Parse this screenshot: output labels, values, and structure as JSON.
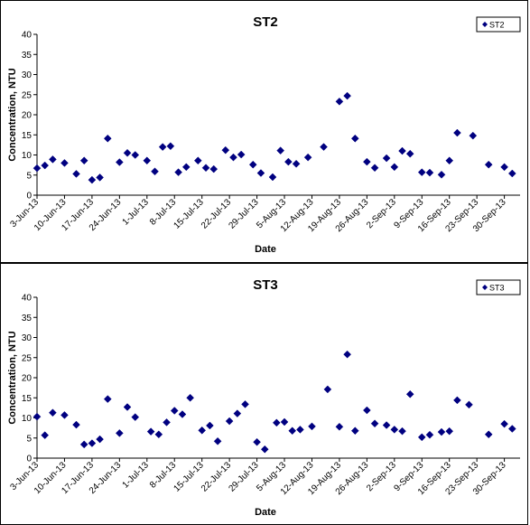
{
  "chart_data": [
    {
      "type": "scatter",
      "title": "ST2",
      "xlabel": "Date",
      "ylabel": "Concentration, NTU",
      "ylim": [
        0,
        40
      ],
      "yticks": [
        "0",
        "5",
        "10",
        "15",
        "20",
        "25",
        "30",
        "35",
        "40"
      ],
      "xlim": [
        "2013-06-03",
        "2013-10-04"
      ],
      "xtick_labels": [
        "3-Jun-13",
        "10-Jun-13",
        "17-Jun-13",
        "24-Jun-13",
        "1-Jul-13",
        "8-Jul-13",
        "15-Jul-13",
        "22-Jul-13",
        "29-Jul-13",
        "5-Aug-13",
        "12-Aug-13",
        "19-Aug-13",
        "26-Aug-13",
        "2-Sep-13",
        "9-Sep-13",
        "16-Sep-13",
        "23-Sep-13",
        "30-Sep-13"
      ],
      "grid": false,
      "legend_position": "top-right",
      "marker_color": "#000080",
      "series": [
        {
          "name": "ST2",
          "points": [
            [
              "2013-06-03",
              6.7
            ],
            [
              "2013-06-05",
              7.4
            ],
            [
              "2013-06-07",
              8.9
            ],
            [
              "2013-06-10",
              8.0
            ],
            [
              "2013-06-13",
              5.3
            ],
            [
              "2013-06-15",
              8.6
            ],
            [
              "2013-06-17",
              3.8
            ],
            [
              "2013-06-19",
              4.4
            ],
            [
              "2013-06-21",
              14.1
            ],
            [
              "2013-06-24",
              8.2
            ],
            [
              "2013-06-26",
              10.5
            ],
            [
              "2013-06-28",
              10.0
            ],
            [
              "2013-07-01",
              8.6
            ],
            [
              "2013-07-03",
              5.9
            ],
            [
              "2013-07-05",
              12.0
            ],
            [
              "2013-07-07",
              12.2
            ],
            [
              "2013-07-09",
              5.7
            ],
            [
              "2013-07-11",
              7.0
            ],
            [
              "2013-07-14",
              8.6
            ],
            [
              "2013-07-16",
              6.8
            ],
            [
              "2013-07-18",
              6.5
            ],
            [
              "2013-07-21",
              11.2
            ],
            [
              "2013-07-23",
              9.4
            ],
            [
              "2013-07-25",
              10.1
            ],
            [
              "2013-07-28",
              7.6
            ],
            [
              "2013-07-30",
              5.5
            ],
            [
              "2013-08-02",
              4.5
            ],
            [
              "2013-08-04",
              11.1
            ],
            [
              "2013-08-06",
              8.3
            ],
            [
              "2013-08-08",
              7.8
            ],
            [
              "2013-08-11",
              9.4
            ],
            [
              "2013-08-15",
              12.0
            ],
            [
              "2013-08-19",
              23.3
            ],
            [
              "2013-08-21",
              24.7
            ],
            [
              "2013-08-23",
              14.1
            ],
            [
              "2013-08-26",
              8.3
            ],
            [
              "2013-08-28",
              6.8
            ],
            [
              "2013-08-31",
              9.2
            ],
            [
              "2013-09-02",
              7.0
            ],
            [
              "2013-09-04",
              11.0
            ],
            [
              "2013-09-06",
              10.3
            ],
            [
              "2013-09-09",
              5.7
            ],
            [
              "2013-09-11",
              5.6
            ],
            [
              "2013-09-14",
              5.1
            ],
            [
              "2013-09-16",
              8.6
            ],
            [
              "2013-09-18",
              15.5
            ],
            [
              "2013-09-22",
              14.8
            ],
            [
              "2013-09-26",
              7.6
            ],
            [
              "2013-09-30",
              7.0
            ],
            [
              "2013-10-02",
              5.4
            ]
          ]
        }
      ]
    },
    {
      "type": "scatter",
      "title": "ST3",
      "xlabel": "Date",
      "ylabel": "Concentration, NTU",
      "ylim": [
        0,
        40
      ],
      "yticks": [
        "0",
        "5",
        "10",
        "15",
        "20",
        "25",
        "30",
        "35",
        "40"
      ],
      "xlim": [
        "2013-06-03",
        "2013-10-04"
      ],
      "xtick_labels": [
        "3-Jun-13",
        "10-Jun-13",
        "17-Jun-13",
        "24-Jun-13",
        "1-Jul-13",
        "8-Jul-13",
        "15-Jul-13",
        "22-Jul-13",
        "29-Jul-13",
        "5-Aug-13",
        "12-Aug-13",
        "19-Aug-13",
        "26-Aug-13",
        "2-Sep-13",
        "9-Sep-13",
        "16-Sep-13",
        "23-Sep-13",
        "30-Sep-13"
      ],
      "grid": false,
      "legend_position": "top-right",
      "marker_color": "#000080",
      "series": [
        {
          "name": "ST3",
          "points": [
            [
              "2013-06-03",
              10.3
            ],
            [
              "2013-06-05",
              5.7
            ],
            [
              "2013-06-07",
              11.3
            ],
            [
              "2013-06-10",
              10.7
            ],
            [
              "2013-06-13",
              8.3
            ],
            [
              "2013-06-15",
              3.4
            ],
            [
              "2013-06-17",
              3.7
            ],
            [
              "2013-06-19",
              4.7
            ],
            [
              "2013-06-21",
              14.7
            ],
            [
              "2013-06-24",
              6.2
            ],
            [
              "2013-06-26",
              12.7
            ],
            [
              "2013-06-28",
              10.2
            ],
            [
              "2013-07-02",
              6.6
            ],
            [
              "2013-07-04",
              5.9
            ],
            [
              "2013-07-06",
              8.9
            ],
            [
              "2013-07-08",
              11.8
            ],
            [
              "2013-07-10",
              10.9
            ],
            [
              "2013-07-12",
              15.0
            ],
            [
              "2013-07-15",
              6.9
            ],
            [
              "2013-07-17",
              8.1
            ],
            [
              "2013-07-19",
              4.2
            ],
            [
              "2013-07-22",
              9.2
            ],
            [
              "2013-07-24",
              11.1
            ],
            [
              "2013-07-26",
              13.4
            ],
            [
              "2013-07-29",
              4.0
            ],
            [
              "2013-07-31",
              2.2
            ],
            [
              "2013-08-03",
              8.8
            ],
            [
              "2013-08-05",
              9.0
            ],
            [
              "2013-08-07",
              6.8
            ],
            [
              "2013-08-09",
              7.1
            ],
            [
              "2013-08-12",
              7.9
            ],
            [
              "2013-08-16",
              17.1
            ],
            [
              "2013-08-19",
              7.8
            ],
            [
              "2013-08-21",
              25.8
            ],
            [
              "2013-08-23",
              6.8
            ],
            [
              "2013-08-26",
              11.9
            ],
            [
              "2013-08-28",
              8.6
            ],
            [
              "2013-08-31",
              8.2
            ],
            [
              "2013-09-02",
              7.1
            ],
            [
              "2013-09-04",
              6.7
            ],
            [
              "2013-09-06",
              15.9
            ],
            [
              "2013-09-09",
              5.2
            ],
            [
              "2013-09-11",
              5.8
            ],
            [
              "2013-09-14",
              6.5
            ],
            [
              "2013-09-16",
              6.7
            ],
            [
              "2013-09-18",
              14.4
            ],
            [
              "2013-09-21",
              13.3
            ],
            [
              "2013-09-26",
              5.9
            ],
            [
              "2013-09-30",
              8.5
            ],
            [
              "2013-10-02",
              7.3
            ]
          ]
        }
      ]
    }
  ]
}
